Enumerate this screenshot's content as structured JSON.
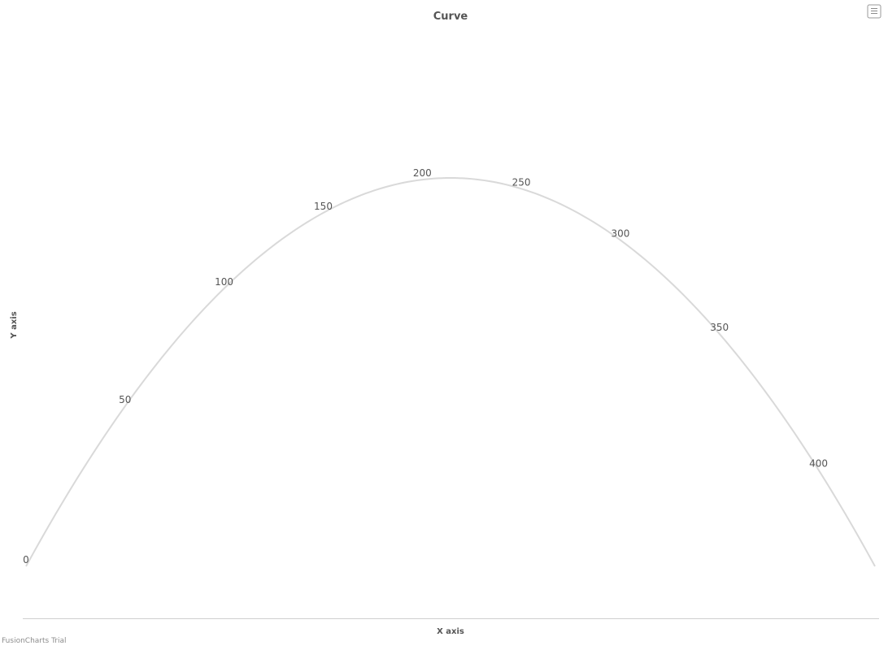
{
  "chart_data": {
    "type": "line",
    "title": "Curve",
    "xlabel": "X axis",
    "ylabel": "Y axis",
    "x": [
      0,
      50,
      100,
      150,
      200,
      250,
      300,
      350,
      400
    ],
    "values": [
      0,
      50,
      100,
      150,
      200,
      250,
      300,
      350,
      400
    ],
    "series_color": "#d9d9d9",
    "grid": false,
    "legend": "none"
  },
  "credit": "FusionCharts Trial",
  "menu": {
    "icon": "hamburger-menu-icon"
  }
}
